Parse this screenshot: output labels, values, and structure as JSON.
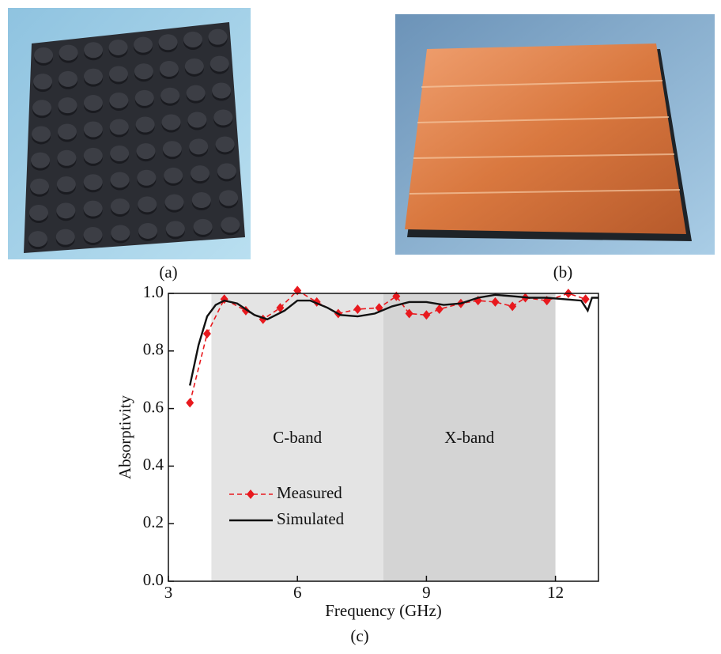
{
  "panel_labels": [
    "(a)",
    "(b)"
  ],
  "chart_data": {
    "type": "line",
    "caption": "(c)",
    "x_label": "Frequency (GHz)",
    "y_label": "Absorptivity",
    "xlim": [
      3,
      13
    ],
    "ylim": [
      0,
      1
    ],
    "xticks": [
      3,
      6,
      9,
      12
    ],
    "yticks": [
      {
        "value": 0,
        "label": "0.0"
      },
      0.2,
      0.4,
      0.6,
      0.8,
      {
        "value": 1,
        "label": "1.0"
      }
    ],
    "bands": [
      {
        "label": "C-band",
        "range": [
          4,
          8
        ],
        "color": "#e4e4e4"
      },
      {
        "label": "X-band",
        "range": [
          8,
          12
        ],
        "color": "#d4d4d4"
      }
    ],
    "legend": "lower left",
    "series": [
      {
        "name": "Measured",
        "color": "#e8191e",
        "dashed": true,
        "marker": "diamond",
        "x": [
          3.5,
          3.9,
          4.3,
          4.8,
          5.2,
          5.6,
          6.0,
          6.45,
          6.95,
          7.4,
          7.9,
          8.3,
          8.6,
          9.0,
          9.3,
          9.8,
          10.2,
          10.6,
          11.0,
          11.3,
          11.8,
          12.3,
          12.7
        ],
        "values": [
          0.62,
          0.86,
          0.98,
          0.94,
          0.91,
          0.95,
          1.01,
          0.97,
          0.93,
          0.945,
          0.95,
          0.99,
          0.93,
          0.925,
          0.945,
          0.965,
          0.975,
          0.97,
          0.955,
          0.985,
          0.975,
          1.0,
          0.98
        ]
      },
      {
        "name": "Simulated",
        "color": "#111111",
        "dashed": false,
        "marker": "none",
        "x": [
          3.5,
          3.7,
          3.9,
          4.1,
          4.3,
          4.6,
          5.0,
          5.3,
          5.7,
          6.0,
          6.3,
          6.7,
          7.0,
          7.4,
          7.8,
          8.2,
          8.6,
          9.0,
          9.4,
          9.8,
          10.2,
          10.6,
          11.0,
          11.4,
          11.8,
          12.2,
          12.6,
          12.75,
          12.85,
          13.0
        ],
        "values": [
          0.68,
          0.82,
          0.92,
          0.96,
          0.975,
          0.965,
          0.925,
          0.91,
          0.94,
          0.975,
          0.975,
          0.95,
          0.925,
          0.92,
          0.93,
          0.955,
          0.97,
          0.97,
          0.96,
          0.965,
          0.985,
          0.995,
          0.99,
          0.985,
          0.985,
          0.98,
          0.975,
          0.94,
          0.985,
          0.985
        ]
      }
    ]
  }
}
